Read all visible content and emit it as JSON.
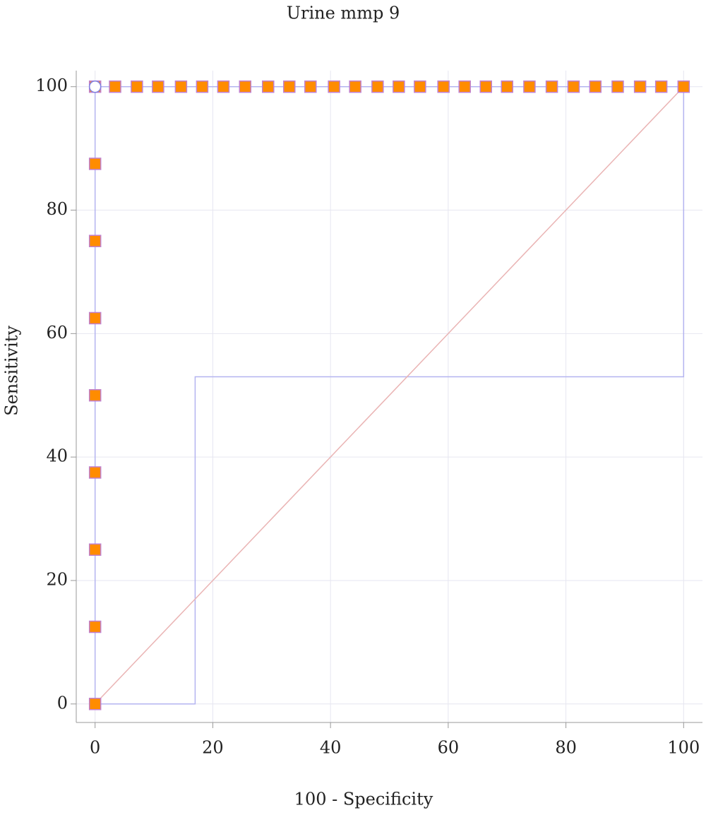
{
  "chart_data": {
    "type": "line",
    "title": "Urine mmp 9",
    "xlabel": "100 - Specificity",
    "ylabel": "Sensitivity",
    "xlim": [
      -3.2,
      103.2
    ],
    "ylim": [
      -3,
      102.6
    ],
    "xticks": [
      0,
      20,
      40,
      60,
      80,
      100
    ],
    "yticks": [
      0,
      20,
      40,
      60,
      80,
      100
    ],
    "grid": true,
    "series": [
      {
        "style": "line",
        "color": "#b4b4f0",
        "x": [
          0,
          0,
          100
        ],
        "values": [
          0,
          100,
          100
        ]
      },
      {
        "style": "line",
        "color": "#b4b4f0",
        "x": [
          0,
          17,
          17,
          100,
          100
        ],
        "values": [
          0,
          0,
          53,
          53,
          100
        ]
      },
      {
        "style": "line",
        "color": "#eab4b4",
        "x": [
          0,
          100
        ],
        "values": [
          0,
          100
        ]
      },
      {
        "style": "square",
        "color": "#ff8c00",
        "edge": "#c080d0",
        "x": [
          0,
          0,
          0,
          0,
          0,
          0,
          0,
          0,
          0,
          3.4,
          7.1,
          10.7,
          14.6,
          18.2,
          21.8,
          25.5,
          29.4,
          33.0,
          36.6,
          40.6,
          44.2,
          48.0,
          51.6,
          55.2,
          59.2,
          62.8,
          66.4,
          70.0,
          73.8,
          77.6,
          81.3,
          85.0,
          88.8,
          92.6,
          96.2,
          100
        ],
        "values": [
          0,
          12.5,
          25,
          37.5,
          50,
          62.5,
          75,
          87.5,
          100,
          100,
          100,
          100,
          100,
          100,
          100,
          100,
          100,
          100,
          100,
          100,
          100,
          100,
          100,
          100,
          100,
          100,
          100,
          100,
          100,
          100,
          100,
          100,
          100,
          100,
          100,
          100
        ]
      },
      {
        "style": "circle",
        "color": "#ffffff",
        "edge": "#8080e0",
        "x": [
          0
        ],
        "values": [
          100
        ]
      }
    ]
  }
}
